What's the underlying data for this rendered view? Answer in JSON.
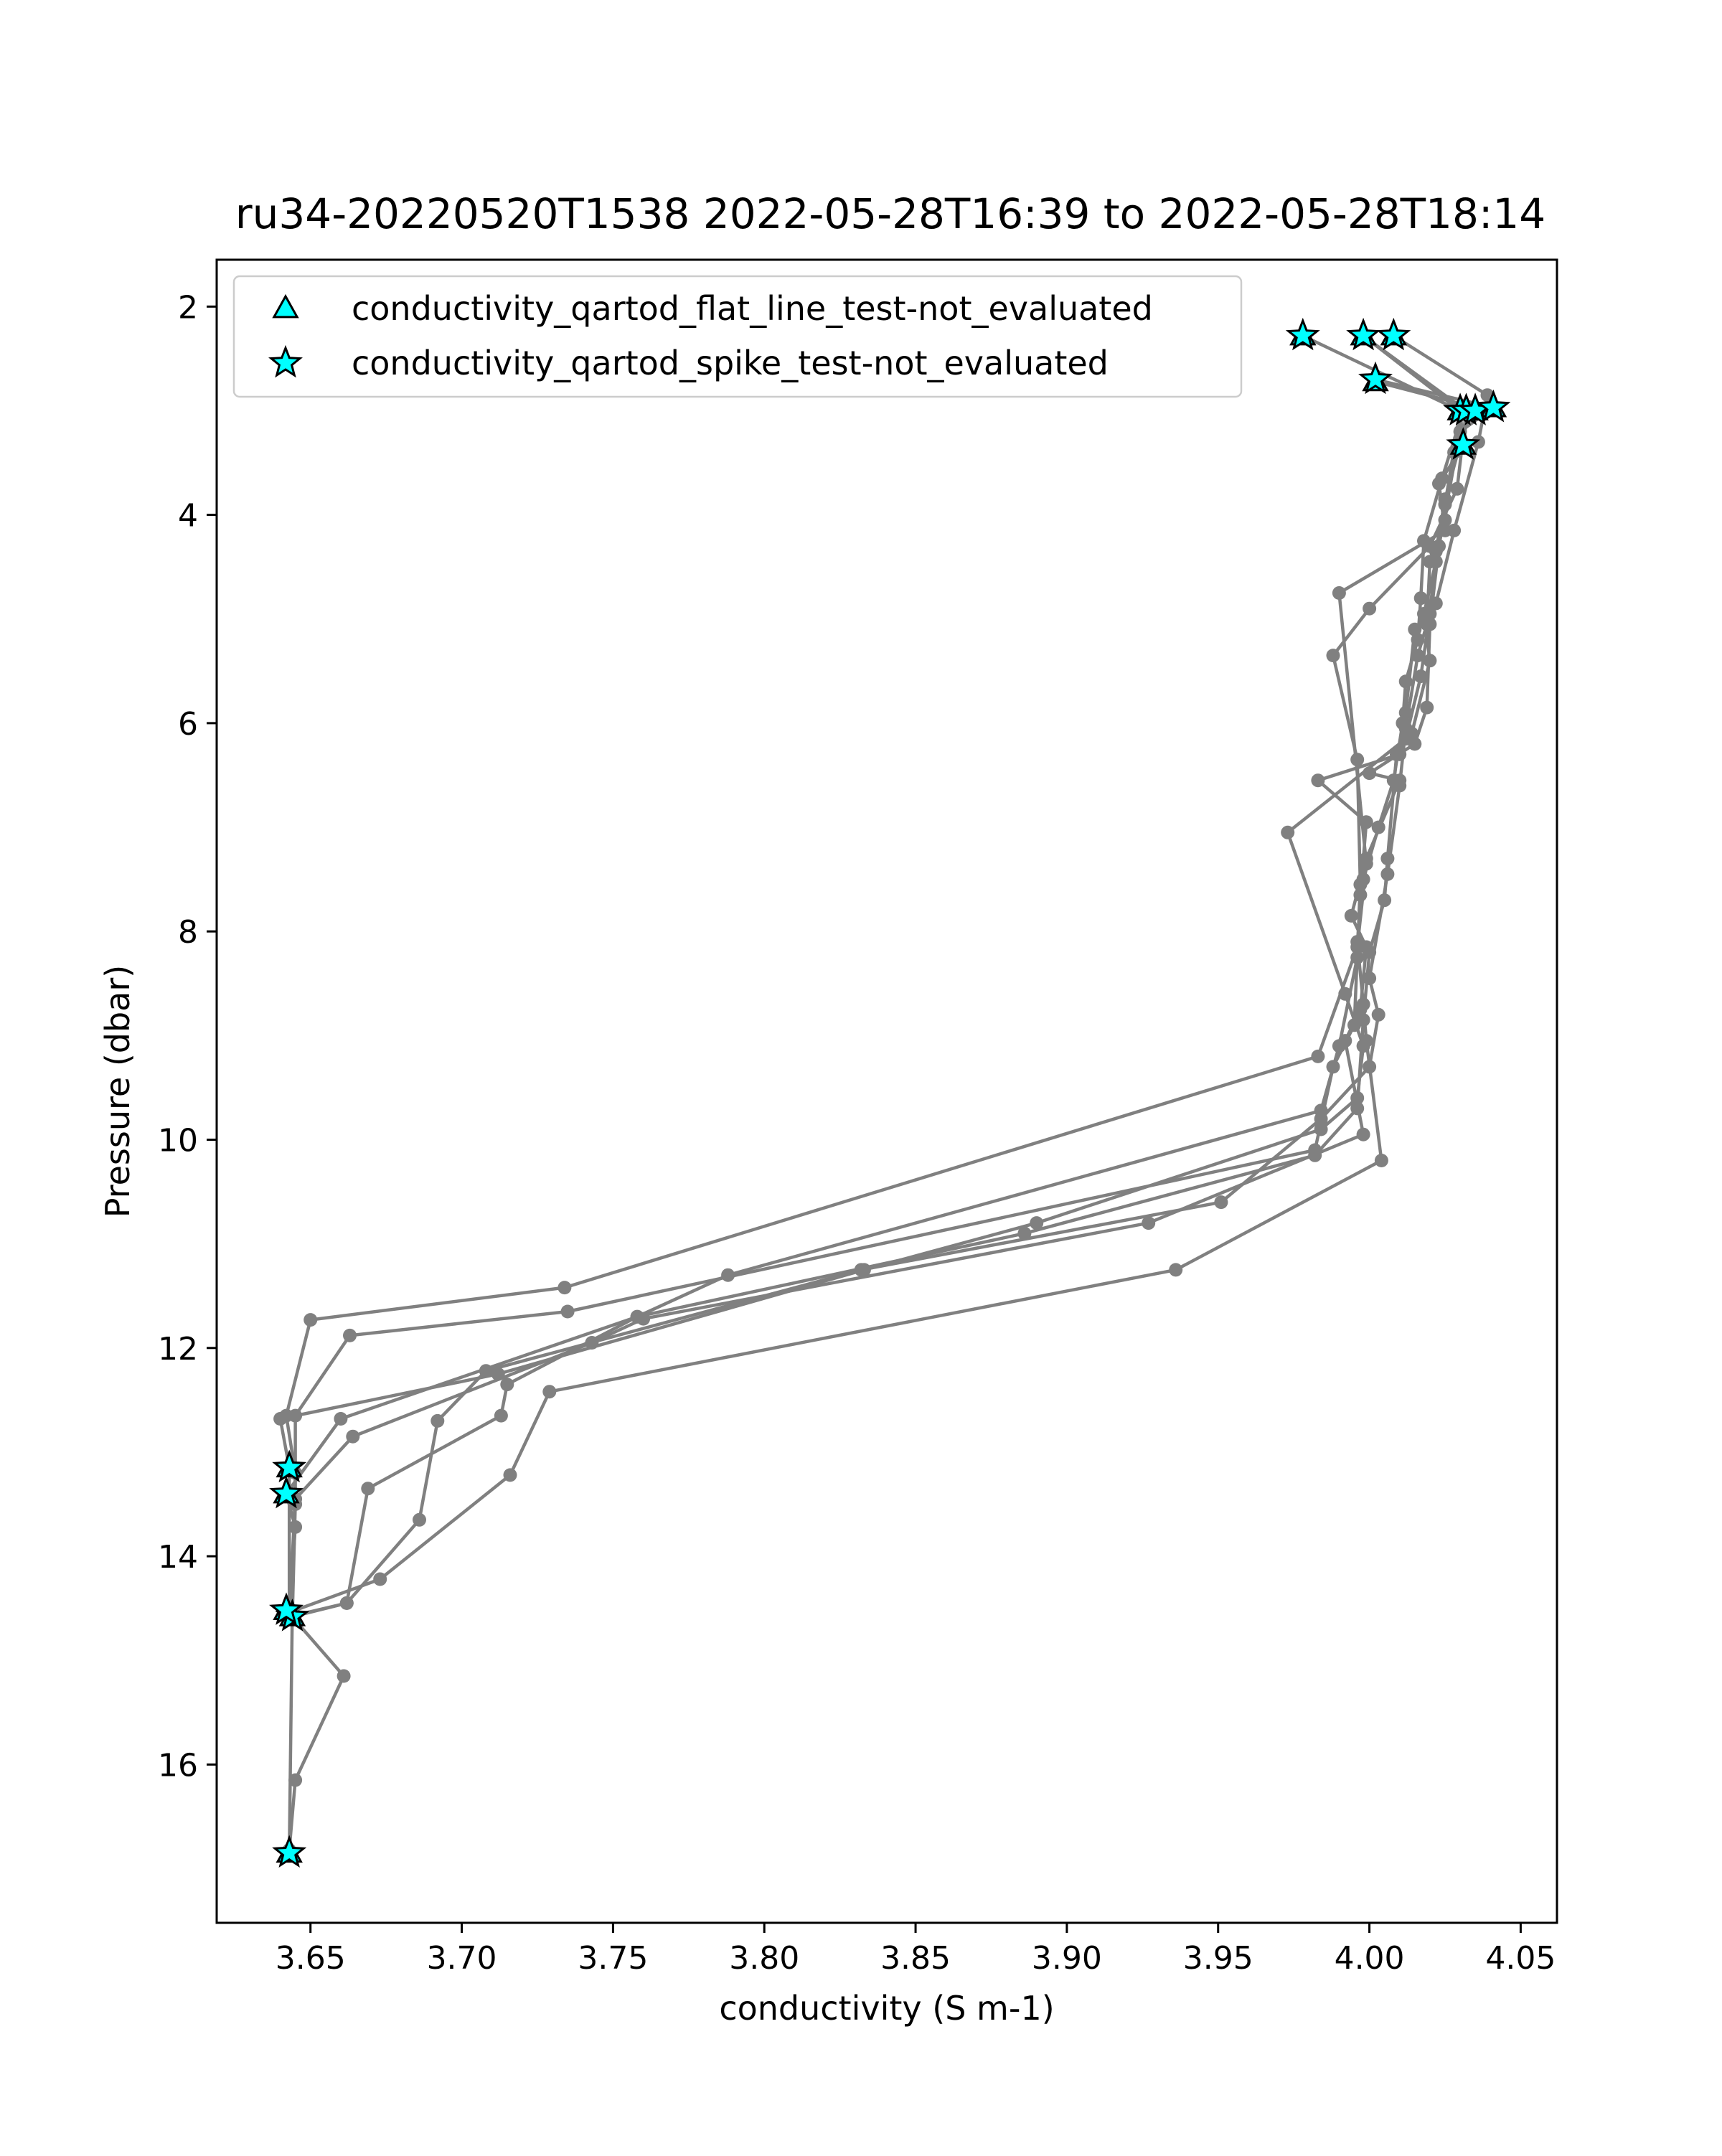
{
  "chart_data": {
    "type": "line",
    "title": "ru34-20220520T1538 2022-05-28T16:39 to 2022-05-28T18:14",
    "xlabel": "conductivity (S m-1)",
    "ylabel": "Pressure (dbar)",
    "xlim": [
      3.619,
      4.062
    ],
    "ylim": [
      17.52,
      1.55
    ],
    "y_inverted": true,
    "xticks": [
      3.65,
      3.7,
      3.75,
      3.8,
      3.85,
      3.9,
      3.95,
      4.0,
      4.05
    ],
    "xtick_labels": [
      "3.65",
      "3.70",
      "3.75",
      "3.80",
      "3.85",
      "3.90",
      "3.95",
      "4.00",
      "4.05"
    ],
    "yticks": [
      2,
      4,
      6,
      8,
      10,
      12,
      14,
      16
    ],
    "ytick_labels": [
      "2",
      "4",
      "6",
      "8",
      "10",
      "12",
      "14",
      "16"
    ],
    "grid": false,
    "legend_position": "upper-left",
    "colors": {
      "line": "#808080",
      "marker_fill": "#00ffff",
      "marker_edge": "#000000"
    },
    "legend": [
      {
        "label": "conductivity_qartod_flat_line_test-not_evaluated",
        "marker": "triangle"
      },
      {
        "label": "conductivity_qartod_spike_test-not_evaluated",
        "marker": "star"
      }
    ],
    "series": [
      {
        "points": [
          [
            3.978,
            2.28
          ],
          [
            4.03,
            3.0
          ],
          [
            4.031,
            3.33
          ],
          [
            4.023,
            3.7
          ],
          [
            4.025,
            4.15
          ],
          [
            3.99,
            4.75
          ],
          [
            3.999,
            7.35
          ],
          [
            3.996,
            8.15
          ],
          [
            3.983,
            9.2
          ],
          [
            3.734,
            11.42
          ],
          [
            3.65,
            11.73
          ],
          [
            3.642,
            12.65
          ],
          [
            3.645,
            13.2
          ],
          [
            3.644,
            14.53
          ],
          [
            3.643,
            16.85
          ]
        ]
      },
      {
        "points": [
          [
            3.998,
            2.28
          ],
          [
            4.032,
            3.0
          ],
          [
            4.029,
            3.75
          ],
          [
            4.02,
            4.3
          ],
          [
            4.0,
            4.9
          ],
          [
            3.988,
            5.35
          ],
          [
            3.996,
            6.35
          ],
          [
            3.997,
            7.55
          ],
          [
            3.995,
            8.9
          ],
          [
            3.988,
            9.3
          ],
          [
            3.982,
            10.1
          ],
          [
            3.735,
            11.65
          ],
          [
            3.663,
            11.88
          ],
          [
            3.645,
            12.65
          ],
          [
            3.645,
            13.5
          ],
          [
            3.644,
            14.58
          ]
        ]
      },
      {
        "points": [
          [
            4.008,
            2.28
          ],
          [
            4.039,
            2.85
          ],
          [
            4.036,
            3.3
          ],
          [
            4.028,
            4.15
          ],
          [
            4.022,
            4.85
          ],
          [
            4.015,
            5.1
          ],
          [
            4.012,
            5.9
          ],
          [
            4.01,
            6.3
          ],
          [
            3.983,
            6.55
          ],
          [
            3.999,
            6.95
          ],
          [
            3.997,
            7.65
          ],
          [
            3.996,
            8.25
          ],
          [
            3.99,
            9.1
          ],
          [
            3.984,
            9.72
          ],
          [
            3.788,
            11.3
          ],
          [
            3.758,
            11.7
          ],
          [
            3.66,
            12.68
          ],
          [
            3.642,
            13.4
          ],
          [
            3.645,
            13.72
          ],
          [
            3.643,
            14.55
          ]
        ]
      },
      {
        "points": [
          [
            4.002,
            2.7
          ],
          [
            4.041,
            2.97
          ],
          [
            4.03,
            3.2
          ],
          [
            4.023,
            4.3
          ],
          [
            4.02,
            5.05
          ],
          [
            4.019,
            5.85
          ],
          [
            4.015,
            6.2
          ],
          [
            4.0,
            6.48
          ],
          [
            4.01,
            6.55
          ],
          [
            3.999,
            7.3
          ],
          [
            3.994,
            7.85
          ],
          [
            3.999,
            8.15
          ],
          [
            3.997,
            8.75
          ],
          [
            3.992,
            9.05
          ],
          [
            3.998,
            9.95
          ],
          [
            3.927,
            10.8
          ],
          [
            3.76,
            11.72
          ],
          [
            3.743,
            11.95
          ],
          [
            3.664,
            12.85
          ],
          [
            3.645,
            13.45
          ],
          [
            3.643,
            14.58
          ]
        ]
      },
      {
        "points": [
          [
            4.002,
            2.72
          ],
          [
            4.035,
            2.97
          ],
          [
            4.028,
            3.4
          ],
          [
            4.025,
            4.05
          ],
          [
            4.02,
            4.45
          ],
          [
            4.019,
            5.05
          ],
          [
            4.016,
            5.35
          ],
          [
            4.012,
            6.05
          ],
          [
            4.01,
            6.6
          ],
          [
            4.006,
            7.45
          ],
          [
            4.0,
            8.45
          ],
          [
            4.003,
            8.8
          ],
          [
            4.0,
            9.3
          ],
          [
            3.984,
            9.8
          ],
          [
            3.951,
            10.6
          ],
          [
            3.832,
            11.25
          ],
          [
            3.708,
            12.22
          ],
          [
            3.692,
            12.7
          ],
          [
            3.686,
            13.65
          ],
          [
            3.662,
            14.45
          ],
          [
            3.643,
            14.58
          ]
        ]
      },
      {
        "points": [
          [
            3.998,
            2.28
          ],
          [
            4.03,
            3.0
          ],
          [
            4.025,
            3.9
          ],
          [
            4.022,
            4.45
          ],
          [
            4.018,
            4.95
          ],
          [
            4.02,
            5.4
          ],
          [
            4.014,
            6.1
          ],
          [
            4.009,
            6.3
          ],
          [
            4.006,
            7.3
          ],
          [
            4.005,
            7.7
          ],
          [
            4.0,
            8.2
          ],
          [
            3.998,
            8.85
          ],
          [
            3.996,
            9.7
          ],
          [
            3.982,
            10.15
          ],
          [
            3.886,
            10.9
          ],
          [
            3.758,
            11.7
          ],
          [
            3.715,
            12.35
          ],
          [
            3.713,
            12.65
          ],
          [
            3.669,
            13.35
          ],
          [
            3.662,
            14.45
          ],
          [
            3.644,
            14.58
          ]
        ]
      },
      {
        "points": [
          [
            4.031,
            3.0
          ],
          [
            4.024,
            3.65
          ],
          [
            4.018,
            4.25
          ],
          [
            4.017,
            4.8
          ],
          [
            4.016,
            5.2
          ],
          [
            4.012,
            5.6
          ],
          [
            4.011,
            6.0
          ],
          [
            4.008,
            6.55
          ],
          [
            4.003,
            7.0
          ],
          [
            3.998,
            7.5
          ],
          [
            3.996,
            8.1
          ],
          [
            3.998,
            8.7
          ],
          [
            3.999,
            9.05
          ],
          [
            4.004,
            10.2
          ],
          [
            3.936,
            11.25
          ],
          [
            3.729,
            12.42
          ],
          [
            3.716,
            13.22
          ],
          [
            3.673,
            14.22
          ],
          [
            3.642,
            14.55
          ]
        ]
      },
      {
        "points": [
          [
            4.033,
            3.0
          ],
          [
            4.025,
            3.85
          ],
          [
            4.022,
            4.35
          ],
          [
            4.02,
            4.95
          ],
          [
            4.017,
            5.55
          ],
          [
            4.012,
            6.15
          ],
          [
            3.973,
            7.05
          ],
          [
            3.992,
            8.6
          ],
          [
            3.998,
            9.1
          ],
          [
            3.996,
            9.6
          ],
          [
            3.984,
            9.9
          ],
          [
            3.89,
            10.8
          ],
          [
            3.833,
            11.25
          ],
          [
            3.712,
            12.25
          ],
          [
            3.64,
            12.68
          ],
          [
            3.643,
            13.15
          ],
          [
            3.643,
            14.55
          ],
          [
            3.661,
            15.15
          ],
          [
            3.645,
            16.15
          ],
          [
            3.643,
            16.82
          ]
        ]
      }
    ],
    "flat_line_markers": [
      [
        3.978,
        2.28
      ],
      [
        3.998,
        2.28
      ],
      [
        4.008,
        2.28
      ],
      [
        4.002,
        2.72
      ],
      [
        4.03,
        3.0
      ],
      [
        4.032,
        3.0
      ],
      [
        4.035,
        3.0
      ],
      [
        4.041,
        2.97
      ],
      [
        4.031,
        3.33
      ],
      [
        3.643,
        13.15
      ],
      [
        3.642,
        13.4
      ],
      [
        3.644,
        14.58
      ],
      [
        3.642,
        14.52
      ],
      [
        3.643,
        16.85
      ]
    ],
    "spike_markers": [
      [
        3.978,
        2.28
      ],
      [
        3.998,
        2.28
      ],
      [
        4.008,
        2.28
      ],
      [
        4.002,
        2.7
      ],
      [
        4.03,
        3.0
      ],
      [
        4.032,
        3.0
      ],
      [
        4.035,
        3.0
      ],
      [
        4.041,
        2.97
      ],
      [
        4.031,
        3.33
      ],
      [
        3.643,
        13.15
      ],
      [
        3.642,
        13.4
      ],
      [
        3.644,
        14.58
      ],
      [
        3.642,
        14.52
      ],
      [
        3.643,
        16.85
      ]
    ]
  }
}
